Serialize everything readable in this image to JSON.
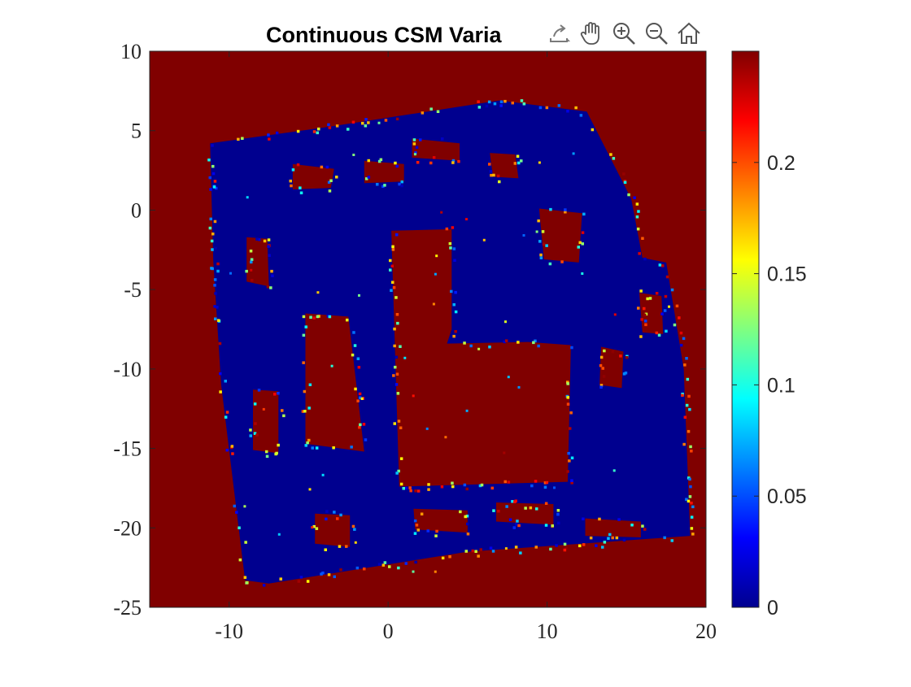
{
  "window": {
    "title": "Continuous CSM Varia"
  },
  "toolbar": {
    "tools": [
      {
        "name": "export-icon"
      },
      {
        "name": "pan-icon"
      },
      {
        "name": "zoom-in-icon"
      },
      {
        "name": "zoom-out-icon"
      },
      {
        "name": "home-icon"
      }
    ]
  },
  "chart_data": {
    "type": "heatmap",
    "title": "Continuous CSM Varia",
    "xlabel": "",
    "ylabel": "",
    "xlim": [
      -15,
      20
    ],
    "ylim": [
      -25,
      10
    ],
    "x_ticks": [
      -10,
      0,
      10,
      20
    ],
    "y_ticks": [
      10,
      5,
      0,
      -5,
      -10,
      -15,
      -20,
      -25
    ],
    "colormap": "jet",
    "clim": [
      0,
      0.25
    ],
    "colorbar_ticks": [
      0,
      0.05,
      0.1,
      0.15,
      0.2
    ],
    "background_value": 0.25,
    "background_color": "#800000",
    "interior_color": "#00008f",
    "map_outline": [
      [
        -11.2,
        4.2
      ],
      [
        -4,
        5.2
      ],
      [
        7,
        6.9
      ],
      [
        12.5,
        6.2
      ],
      [
        15.3,
        0.7
      ],
      [
        16,
        -3
      ],
      [
        17.5,
        -3.3
      ],
      [
        18.6,
        -10
      ],
      [
        19,
        -20.5
      ],
      [
        5,
        -21.5
      ],
      [
        -7.5,
        -23.5
      ],
      [
        -9,
        -23.3
      ],
      [
        -10.5,
        -11
      ],
      [
        -11,
        -3.2
      ]
    ],
    "holes": [
      [
        [
          -8.9,
          -1.7
        ],
        [
          -7.6,
          -1.8
        ],
        [
          -7.5,
          -4.8
        ],
        [
          -8.9,
          -4.5
        ]
      ],
      [
        [
          -5.2,
          -6.5
        ],
        [
          -2.5,
          -6.7
        ],
        [
          -1.5,
          -15.2
        ],
        [
          -5.2,
          -14.7
        ]
      ],
      [
        [
          0.2,
          -1.3
        ],
        [
          4,
          -1.2
        ],
        [
          4,
          -7.5
        ],
        [
          3.7,
          -8.4
        ],
        [
          8.8,
          -8.3
        ],
        [
          11.5,
          -8.5
        ],
        [
          11.3,
          -17.1
        ],
        [
          0.7,
          -17.4
        ]
      ],
      [
        [
          -6,
          2.9
        ],
        [
          -3.4,
          2.6
        ],
        [
          -3.6,
          1.4
        ],
        [
          -6,
          1.3
        ]
      ],
      [
        [
          -1.5,
          3.1
        ],
        [
          1,
          2.9
        ],
        [
          1,
          1.8
        ],
        [
          -1.5,
          1.7
        ]
      ],
      [
        [
          1.5,
          4.5
        ],
        [
          4.5,
          4.2
        ],
        [
          4.5,
          3.1
        ],
        [
          1.5,
          3.3
        ]
      ],
      [
        [
          6.4,
          3.6
        ],
        [
          8,
          3.5
        ],
        [
          8.2,
          2
        ],
        [
          6.6,
          2.1
        ]
      ],
      [
        [
          9.5,
          0.1
        ],
        [
          12.2,
          -0.2
        ],
        [
          12,
          -3.3
        ],
        [
          9.8,
          -3.1
        ]
      ],
      [
        [
          13.4,
          -8.6
        ],
        [
          14.8,
          -8.9
        ],
        [
          14.7,
          -11.2
        ],
        [
          13.3,
          -11
        ]
      ],
      [
        [
          15.8,
          -5.2
        ],
        [
          17.2,
          -5.4
        ],
        [
          17.3,
          -7.8
        ],
        [
          16,
          -7.7
        ]
      ],
      [
        [
          -8.5,
          -11.3
        ],
        [
          -6.9,
          -11.4
        ],
        [
          -6.9,
          -15.3
        ],
        [
          -8.5,
          -15.1
        ]
      ],
      [
        [
          1.6,
          -18.8
        ],
        [
          5,
          -18.9
        ],
        [
          5,
          -20.3
        ],
        [
          1.7,
          -20.1
        ]
      ],
      [
        [
          6.8,
          -18.4
        ],
        [
          10.4,
          -18.5
        ],
        [
          10.4,
          -19.8
        ],
        [
          6.8,
          -19.6
        ]
      ],
      [
        [
          12.4,
          -19.4
        ],
        [
          15.9,
          -19.6
        ],
        [
          15.9,
          -20.6
        ],
        [
          12.4,
          -20.5
        ]
      ],
      [
        [
          -4.6,
          -19.1
        ],
        [
          -2.4,
          -19.2
        ],
        [
          -2.4,
          -21.2
        ],
        [
          -4.6,
          -21
        ]
      ]
    ]
  }
}
